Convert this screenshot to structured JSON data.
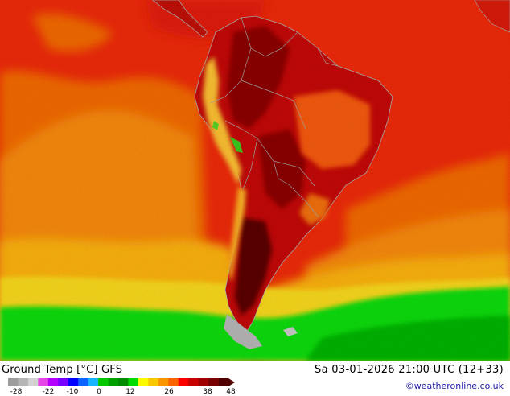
{
  "title": "Ground Temp [°C] GFS",
  "valid_time": "Sa 03-01-2026 21:00 UTC (12+33)",
  "credit": "©weatheronline.co.uk",
  "legend": {
    "ticks": [
      "-28",
      "-22",
      "-10",
      "0",
      "12",
      "26",
      "38",
      "48"
    ],
    "colors": [
      "#9c9c9c",
      "#b4b4b4",
      "#d2d2d2",
      "#e646e6",
      "#b400ff",
      "#7800ff",
      "#0000ff",
      "#0a64ff",
      "#19b4ff",
      "#05c800",
      "#00a000",
      "#008c00",
      "#00dc00",
      "#fafa00",
      "#fac800",
      "#fa9600",
      "#fa6400",
      "#fa0000",
      "#c80000",
      "#a00000",
      "#780000",
      "#500000"
    ]
  },
  "map_colors": {
    "ocean_hot": "#ee2a0a",
    "ocean_warm": "#f36a05",
    "ocean_orange": "#f78a08",
    "ocean_yellow": "#fbb20a",
    "ocean_light": "#f8d81e",
    "ocean_green": "#10dc08",
    "ocean_deepgreen": "#00b400",
    "land_hot": "#c40808",
    "land_very_hot": "#8c0606",
    "land_extreme": "#5a0404",
    "land_warm": "#f55a0c",
    "land_andes": "#fbc030",
    "land_cold": "#b6b6b6"
  }
}
